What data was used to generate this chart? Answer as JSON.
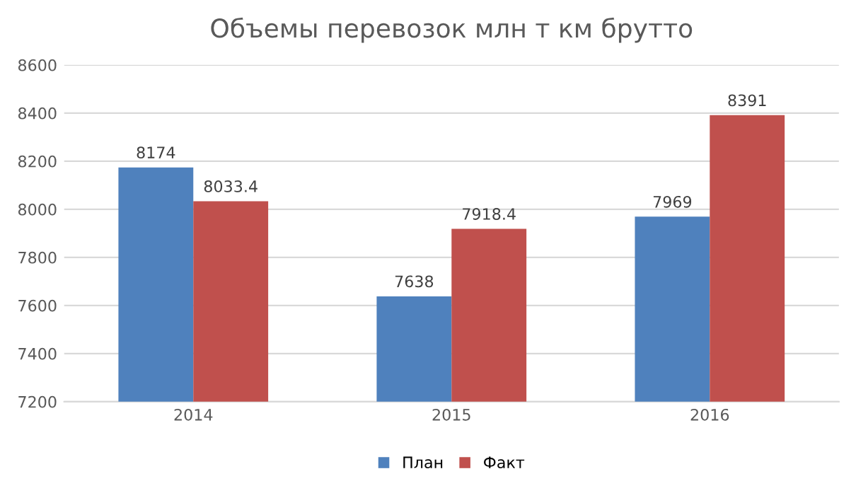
{
  "chart_data": {
    "type": "bar",
    "title": "Объемы перевозок млн т км брутто",
    "categories": [
      "2014",
      "2015",
      "2016"
    ],
    "series": [
      {
        "name": "План",
        "color": "#4f81bd",
        "values": [
          8174,
          7638,
          7969
        ]
      },
      {
        "name": "Факт",
        "color": "#c0504d",
        "values": [
          8033.4,
          7918.4,
          8391
        ]
      }
    ],
    "ylim": [
      7200,
      8600
    ],
    "yticks": [
      7200,
      7400,
      7600,
      7800,
      8000,
      8200,
      8400,
      8600
    ],
    "grid": "y",
    "legend": "bottom",
    "data_labels": true
  }
}
